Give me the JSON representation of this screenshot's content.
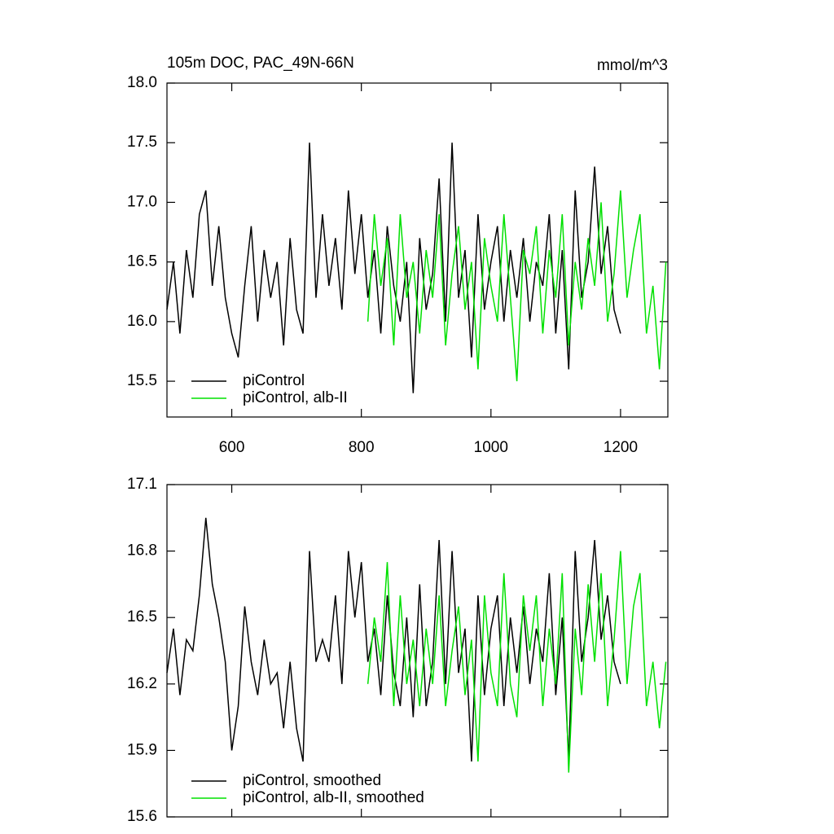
{
  "chart_data": [
    {
      "type": "line",
      "title": "105m DOC, PAC_49N-66N",
      "units_label": "mmol/m^3",
      "xlim": [
        500,
        1273
      ],
      "xticks": [
        600,
        800,
        1000,
        1200
      ],
      "ylim": [
        15.2,
        18.0
      ],
      "yticks": [
        15.5,
        {
          "value": 16,
          "label": "16.0"
        },
        16.5,
        {
          "value": 17,
          "label": "17.0"
        },
        17.5,
        {
          "value": 18,
          "label": "18.0"
        }
      ],
      "legend": "lower left",
      "series": [
        {
          "name": "piControl",
          "color": "#000000",
          "x": [
            500,
            510,
            520,
            530,
            540,
            550,
            560,
            570,
            580,
            590,
            600,
            610,
            620,
            630,
            640,
            650,
            660,
            670,
            680,
            690,
            700,
            710,
            720,
            730,
            740,
            750,
            760,
            770,
            780,
            790,
            800,
            810,
            820,
            830,
            840,
            850,
            860,
            870,
            880,
            890,
            900,
            910,
            920,
            930,
            940,
            950,
            960,
            970,
            980,
            990,
            1000,
            1010,
            1020,
            1030,
            1040,
            1050,
            1060,
            1070,
            1080,
            1090,
            1100,
            1110,
            1120,
            1130,
            1140,
            1150,
            1160,
            1170,
            1180,
            1190,
            1200
          ],
          "values": [
            16.1,
            16.5,
            15.9,
            16.6,
            16.2,
            16.9,
            17.1,
            16.3,
            16.8,
            16.2,
            15.9,
            15.7,
            16.3,
            16.8,
            16.0,
            16.6,
            16.2,
            16.5,
            15.8,
            16.7,
            16.1,
            15.9,
            17.5,
            16.2,
            16.9,
            16.3,
            16.7,
            16.1,
            17.1,
            16.4,
            16.9,
            16.2,
            16.6,
            15.9,
            16.8,
            16.3,
            16.0,
            16.5,
            15.4,
            16.7,
            16.1,
            16.4,
            17.2,
            16.0,
            17.5,
            16.2,
            16.6,
            15.7,
            16.9,
            16.1,
            16.5,
            16.8,
            16.0,
            16.6,
            16.2,
            16.7,
            16.0,
            16.5,
            16.3,
            16.9,
            15.9,
            16.6,
            15.6,
            17.1,
            16.2,
            16.5,
            17.3,
            16.4,
            16.8,
            16.1,
            15.9
          ]
        },
        {
          "name": "piControl, alb-II",
          "color": "#00e000",
          "x": [
            810,
            820,
            830,
            840,
            850,
            860,
            870,
            880,
            890,
            900,
            910,
            920,
            930,
            940,
            950,
            960,
            970,
            980,
            990,
            1000,
            1010,
            1020,
            1030,
            1040,
            1050,
            1060,
            1070,
            1080,
            1090,
            1100,
            1110,
            1120,
            1130,
            1140,
            1150,
            1160,
            1170,
            1180,
            1190,
            1200,
            1210,
            1220,
            1230,
            1240,
            1250,
            1260,
            1270
          ],
          "values": [
            16.0,
            16.9,
            16.3,
            16.7,
            15.8,
            16.9,
            16.2,
            16.5,
            15.9,
            16.6,
            16.2,
            16.9,
            15.8,
            16.4,
            16.8,
            16.1,
            16.5,
            15.6,
            16.7,
            16.3,
            16.0,
            16.9,
            16.2,
            15.5,
            16.6,
            16.4,
            16.8,
            15.9,
            16.6,
            16.2,
            16.9,
            15.8,
            16.5,
            16.1,
            16.7,
            16.3,
            17.0,
            16.0,
            16.4,
            17.1,
            16.2,
            16.6,
            16.9,
            15.9,
            16.3,
            15.6,
            16.5
          ]
        }
      ]
    },
    {
      "type": "line",
      "xlim": [
        500,
        1273
      ],
      "ylim": [
        15.6,
        17.1
      ],
      "yticks": [
        15.6,
        15.9,
        16.2,
        16.5,
        16.8,
        17.1
      ],
      "legend": "lower left",
      "series": [
        {
          "name": "piControl, smoothed",
          "color": "#000000",
          "x": [
            500,
            510,
            520,
            530,
            540,
            550,
            560,
            570,
            580,
            590,
            600,
            610,
            620,
            630,
            640,
            650,
            660,
            670,
            680,
            690,
            700,
            710,
            720,
            730,
            740,
            750,
            760,
            770,
            780,
            790,
            800,
            810,
            820,
            830,
            840,
            850,
            860,
            870,
            880,
            890,
            900,
            910,
            920,
            930,
            940,
            950,
            960,
            970,
            980,
            990,
            1000,
            1010,
            1020,
            1030,
            1040,
            1050,
            1060,
            1070,
            1080,
            1090,
            1100,
            1110,
            1120,
            1130,
            1140,
            1150,
            1160,
            1170,
            1180,
            1190,
            1200
          ],
          "values": [
            16.25,
            16.45,
            16.15,
            16.4,
            16.35,
            16.6,
            16.95,
            16.65,
            16.5,
            16.3,
            15.9,
            16.1,
            16.55,
            16.3,
            16.15,
            16.4,
            16.2,
            16.25,
            16.0,
            16.3,
            16.0,
            15.85,
            16.8,
            16.3,
            16.4,
            16.3,
            16.6,
            16.2,
            16.8,
            16.5,
            16.75,
            16.3,
            16.45,
            16.15,
            16.6,
            16.25,
            16.1,
            16.5,
            16.05,
            16.65,
            16.1,
            16.3,
            16.85,
            16.2,
            16.8,
            16.25,
            16.45,
            15.85,
            16.6,
            16.15,
            16.45,
            16.6,
            16.1,
            16.5,
            16.25,
            16.55,
            16.2,
            16.45,
            16.3,
            16.7,
            16.15,
            16.5,
            15.85,
            16.8,
            16.3,
            16.5,
            16.85,
            16.4,
            16.6,
            16.3,
            16.2
          ]
        },
        {
          "name": "piControl, alb-II, smoothed",
          "color": "#00e000",
          "x": [
            810,
            820,
            830,
            840,
            850,
            860,
            870,
            880,
            890,
            900,
            910,
            920,
            930,
            940,
            950,
            960,
            970,
            980,
            990,
            1000,
            1010,
            1020,
            1030,
            1040,
            1050,
            1060,
            1070,
            1080,
            1090,
            1100,
            1110,
            1120,
            1130,
            1140,
            1150,
            1160,
            1170,
            1180,
            1190,
            1200,
            1210,
            1220,
            1230,
            1240,
            1250,
            1260,
            1270
          ],
          "values": [
            16.2,
            16.5,
            16.3,
            16.75,
            16.1,
            16.6,
            16.2,
            16.4,
            16.1,
            16.45,
            16.2,
            16.6,
            16.1,
            16.35,
            16.55,
            16.15,
            16.4,
            15.85,
            16.6,
            16.25,
            16.1,
            16.7,
            16.2,
            16.05,
            16.6,
            16.35,
            16.6,
            16.1,
            16.45,
            16.2,
            16.7,
            15.8,
            16.45,
            16.15,
            16.65,
            16.3,
            16.7,
            16.1,
            16.4,
            16.8,
            16.2,
            16.55,
            16.7,
            16.1,
            16.3,
            16.0,
            16.3
          ]
        }
      ]
    }
  ]
}
